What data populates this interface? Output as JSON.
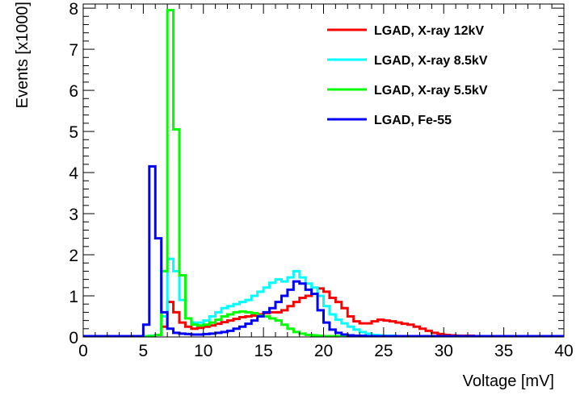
{
  "chart_data": {
    "type": "line",
    "step": true,
    "title": "",
    "xlabel": "Voltage [mV]",
    "ylabel": "Events [x1000]",
    "xlim": [
      0,
      40
    ],
    "ylim": [
      0,
      8.1
    ],
    "x_ticks": [
      "0",
      "5",
      "10",
      "15",
      "20",
      "25",
      "30",
      "35",
      "40"
    ],
    "y_ticks": [
      "0",
      "1",
      "2",
      "3",
      "4",
      "5",
      "6",
      "7",
      "8"
    ],
    "grid": false,
    "legend_position": "top-right",
    "bin_width": 0.5,
    "bin_start": 0,
    "series": [
      {
        "name": "LGAD, X-ray 12kV",
        "color": "#ff0000",
        "values": [
          0.02,
          0.02,
          0.02,
          0.02,
          0.02,
          0.02,
          0.02,
          0.02,
          0.02,
          0.02,
          0.02,
          0.03,
          0.05,
          0.25,
          0.85,
          0.6,
          0.35,
          0.25,
          0.2,
          0.22,
          0.25,
          0.28,
          0.32,
          0.36,
          0.4,
          0.44,
          0.48,
          0.5,
          0.52,
          0.55,
          0.58,
          0.6,
          0.6,
          0.65,
          0.75,
          0.85,
          0.95,
          1.0,
          1.05,
          1.18,
          1.1,
          0.95,
          0.85,
          0.7,
          0.5,
          0.38,
          0.33,
          0.33,
          0.38,
          0.42,
          0.4,
          0.38,
          0.35,
          0.32,
          0.3,
          0.25,
          0.2,
          0.15,
          0.1,
          0.07,
          0.05,
          0.04,
          0.03,
          0.03,
          0.03,
          0.02,
          0.02,
          0.02,
          0.02,
          0.02,
          0.02,
          0.02,
          0.02,
          0.02,
          0.02,
          0.02,
          0.02,
          0.02,
          0.02,
          0.02
        ]
      },
      {
        "name": "LGAD, X-ray 8.5kV",
        "color": "#00ffff",
        "values": [
          0.02,
          0.02,
          0.02,
          0.02,
          0.02,
          0.02,
          0.02,
          0.02,
          0.02,
          0.02,
          0.02,
          0.03,
          0.05,
          0.5,
          1.9,
          1.6,
          0.9,
          0.45,
          0.35,
          0.35,
          0.4,
          0.5,
          0.6,
          0.7,
          0.75,
          0.8,
          0.85,
          0.9,
          1.0,
          1.1,
          1.2,
          1.32,
          1.4,
          1.35,
          1.45,
          1.6,
          1.45,
          1.3,
          1.2,
          1.0,
          0.75,
          0.55,
          0.42,
          0.33,
          0.25,
          0.18,
          0.12,
          0.08,
          0.05,
          0.04,
          0.03,
          0.03,
          0.02,
          0.02,
          0.02,
          0.02,
          0.02,
          0.02,
          0.02,
          0.02,
          0.02,
          0.02,
          0.02,
          0.02,
          0.02,
          0.02,
          0.02,
          0.02,
          0.02,
          0.02,
          0.02,
          0.02,
          0.02,
          0.02,
          0.02,
          0.02,
          0.02,
          0.02,
          0.02,
          0.02
        ]
      },
      {
        "name": "LGAD, X-ray 5.5kV",
        "color": "#00ff00",
        "values": [
          0.02,
          0.02,
          0.02,
          0.02,
          0.02,
          0.02,
          0.02,
          0.02,
          0.02,
          0.02,
          0.02,
          0.02,
          0.05,
          1.6,
          7.95,
          5.05,
          1.5,
          0.45,
          0.3,
          0.28,
          0.3,
          0.35,
          0.42,
          0.5,
          0.55,
          0.6,
          0.62,
          0.6,
          0.58,
          0.52,
          0.5,
          0.45,
          0.4,
          0.3,
          0.2,
          0.12,
          0.08,
          0.05,
          0.04,
          0.03,
          0.02,
          0.02,
          0.02,
          0.02,
          0.02,
          0.02,
          0.02,
          0.02,
          0.02,
          0.02,
          0.02,
          0.02,
          0.02,
          0.02,
          0.02,
          0.02,
          0.02,
          0.02,
          0.02,
          0.02,
          0.02,
          0.02,
          0.02,
          0.02,
          0.02,
          0.02,
          0.02,
          0.02,
          0.02,
          0.02,
          0.02,
          0.02,
          0.02,
          0.02,
          0.02,
          0.02,
          0.02,
          0.02,
          0.02,
          0.02
        ]
      },
      {
        "name": "LGAD, Fe-55",
        "color": "#0000ff",
        "values": [
          0.02,
          0.02,
          0.02,
          0.02,
          0.02,
          0.02,
          0.02,
          0.02,
          0.02,
          0.02,
          0.3,
          4.15,
          2.4,
          0.6,
          0.2,
          0.1,
          0.08,
          0.07,
          0.06,
          0.06,
          0.07,
          0.08,
          0.1,
          0.12,
          0.15,
          0.2,
          0.25,
          0.32,
          0.4,
          0.5,
          0.6,
          0.7,
          0.85,
          1.0,
          1.15,
          1.35,
          1.3,
          1.15,
          1.05,
          0.65,
          0.35,
          0.18,
          0.1,
          0.06,
          0.04,
          0.03,
          0.03,
          0.02,
          0.02,
          0.02,
          0.02,
          0.02,
          0.02,
          0.02,
          0.02,
          0.02,
          0.02,
          0.02,
          0.02,
          0.02,
          0.02,
          0.02,
          0.02,
          0.02,
          0.02,
          0.02,
          0.02,
          0.02,
          0.02,
          0.02,
          0.02,
          0.02,
          0.02,
          0.02,
          0.02,
          0.02,
          0.02,
          0.02,
          0.02,
          0.02
        ]
      }
    ]
  }
}
